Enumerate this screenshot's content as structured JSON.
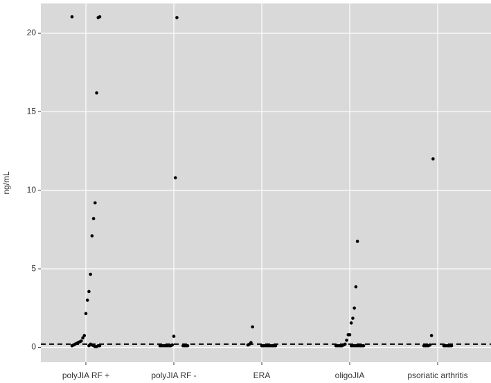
{
  "chart_data": {
    "type": "strip",
    "y_label": "ng/mL",
    "categories": [
      "polyJIA RF +",
      "polyJIA RF -",
      "ERA",
      "oligoJIA",
      "psoriatic arthritis"
    ],
    "series": [
      {
        "name": "polyJIA RF +",
        "values": [
          21.05,
          21.05,
          21.0,
          16.2,
          9.2,
          8.2,
          7.1,
          4.65,
          3.55,
          3.0,
          2.15,
          0.75,
          0.6,
          0.4,
          0.35,
          0.3,
          0.25,
          0.2,
          0.15,
          0.1,
          0.1,
          0.1,
          0.05,
          0.05,
          0.1,
          0.15,
          0.2,
          0.1
        ]
      },
      {
        "name": "polyJIA RF -",
        "values": [
          21.0,
          10.8,
          0.7,
          0.15,
          0.1,
          0.1,
          0.1,
          0.1,
          0.1,
          0.1,
          0.1,
          0.1,
          0.1,
          0.1,
          0.1,
          0.1
        ]
      },
      {
        "name": "ERA",
        "values": [
          1.3,
          0.3,
          0.2,
          0.15,
          0.1,
          0.1,
          0.1,
          0.1,
          0.1,
          0.1,
          0.1,
          0.1,
          0.1,
          0.1
        ]
      },
      {
        "name": "oligoJIA",
        "values": [
          6.75,
          3.85,
          2.5,
          1.85,
          1.55,
          0.8,
          0.8,
          0.45,
          0.2,
          0.15,
          0.1,
          0.1,
          0.1,
          0.1,
          0.1,
          0.1,
          0.1,
          0.1,
          0.1,
          0.1,
          0.1,
          0.1,
          0.1,
          0.1
        ]
      },
      {
        "name": "psoriatic arthritis",
        "values": [
          12.0,
          0.75,
          0.15,
          0.1,
          0.1,
          0.1,
          0.1,
          0.1,
          0.1,
          0.1,
          0.1,
          0.1,
          0.1
        ]
      }
    ],
    "color": "#000000",
    "hline": 0.2,
    "ylim": [
      -0.95,
      21.9
    ],
    "yticks": [
      0,
      5,
      10,
      15,
      20
    ],
    "grid": true
  }
}
